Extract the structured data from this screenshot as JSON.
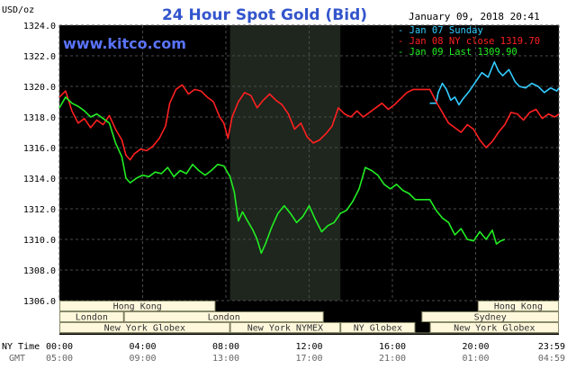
{
  "chart_data": {
    "type": "line",
    "title": "24 Hour Spot Gold (Bid)",
    "watermark": "www.kitco.com",
    "timestamp": "January 09, 2018 20:41",
    "ylabel": "USD/oz",
    "ylim": [
      1306,
      1324
    ],
    "y_ticks": [
      "1324.0",
      "1322.0",
      "1320.0",
      "1318.0",
      "1316.0",
      "1314.0",
      "1312.0",
      "1310.0",
      "1308.0",
      "1306.0"
    ],
    "x_hours": [
      0,
      24
    ],
    "x_ticks": [
      {
        "h": 0,
        "ny": "00:00",
        "gmt": "05:00"
      },
      {
        "h": 4,
        "ny": "04:00",
        "gmt": "09:00"
      },
      {
        "h": 8,
        "ny": "08:00",
        "gmt": "13:00"
      },
      {
        "h": 12,
        "ny": "12:00",
        "gmt": "17:00"
      },
      {
        "h": 16,
        "ny": "16:00",
        "gmt": "21:00"
      },
      {
        "h": 20,
        "ny": "20:00",
        "gmt": "01:00"
      },
      {
        "h": 24,
        "ny": "23:59",
        "gmt": "04:59"
      }
    ],
    "x_axis_labels": {
      "ny": "NY Time",
      "gmt": "GMT"
    },
    "grid": true,
    "background_color": "#000000",
    "grid_color": "#4a4a4a",
    "shaded_region_hours": [
      8.2,
      13.5
    ],
    "series": [
      {
        "name": "Jan 07 Sunday",
        "color": "#33ccff",
        "points": [
          [
            17.8,
            1318.9
          ],
          [
            18.1,
            1318.9
          ],
          [
            18.2,
            1319.6
          ],
          [
            18.4,
            1320.2
          ],
          [
            18.6,
            1319.8
          ],
          [
            18.8,
            1319.1
          ],
          [
            19.0,
            1319.3
          ],
          [
            19.2,
            1318.8
          ],
          [
            19.4,
            1319.2
          ],
          [
            19.7,
            1319.7
          ],
          [
            20.0,
            1320.3
          ],
          [
            20.3,
            1320.9
          ],
          [
            20.6,
            1320.6
          ],
          [
            20.9,
            1321.6
          ],
          [
            21.1,
            1321.0
          ],
          [
            21.3,
            1320.7
          ],
          [
            21.6,
            1321.1
          ],
          [
            21.9,
            1320.3
          ],
          [
            22.1,
            1320.0
          ],
          [
            22.4,
            1319.9
          ],
          [
            22.7,
            1320.2
          ],
          [
            23.0,
            1320.0
          ],
          [
            23.3,
            1319.6
          ],
          [
            23.6,
            1319.9
          ],
          [
            23.9,
            1319.7
          ],
          [
            24.0,
            1319.9
          ]
        ]
      },
      {
        "name": "Jan 08 NY close 1319.70",
        "color": "#ff2020",
        "points": [
          [
            0.0,
            1319.3
          ],
          [
            0.3,
            1319.7
          ],
          [
            0.6,
            1318.4
          ],
          [
            0.9,
            1317.6
          ],
          [
            1.2,
            1317.9
          ],
          [
            1.5,
            1317.3
          ],
          [
            1.8,
            1317.8
          ],
          [
            2.1,
            1317.5
          ],
          [
            2.4,
            1318.1
          ],
          [
            2.7,
            1317.2
          ],
          [
            3.0,
            1316.5
          ],
          [
            3.2,
            1315.5
          ],
          [
            3.4,
            1315.2
          ],
          [
            3.6,
            1315.6
          ],
          [
            3.9,
            1315.9
          ],
          [
            4.2,
            1315.8
          ],
          [
            4.5,
            1316.1
          ],
          [
            4.8,
            1316.6
          ],
          [
            5.1,
            1317.4
          ],
          [
            5.3,
            1318.9
          ],
          [
            5.6,
            1319.8
          ],
          [
            5.9,
            1320.1
          ],
          [
            6.2,
            1319.5
          ],
          [
            6.5,
            1319.8
          ],
          [
            6.8,
            1319.7
          ],
          [
            7.1,
            1319.3
          ],
          [
            7.4,
            1319.0
          ],
          [
            7.7,
            1318.0
          ],
          [
            7.9,
            1317.6
          ],
          [
            8.1,
            1316.6
          ],
          [
            8.3,
            1318.0
          ],
          [
            8.6,
            1319.0
          ],
          [
            8.9,
            1319.6
          ],
          [
            9.2,
            1319.4
          ],
          [
            9.5,
            1318.6
          ],
          [
            9.8,
            1319.1
          ],
          [
            10.1,
            1319.5
          ],
          [
            10.4,
            1319.1
          ],
          [
            10.7,
            1318.8
          ],
          [
            11.0,
            1318.2
          ],
          [
            11.3,
            1317.2
          ],
          [
            11.6,
            1317.6
          ],
          [
            11.9,
            1316.7
          ],
          [
            12.2,
            1316.3
          ],
          [
            12.5,
            1316.5
          ],
          [
            12.8,
            1316.9
          ],
          [
            13.1,
            1317.4
          ],
          [
            13.4,
            1318.6
          ],
          [
            13.7,
            1318.2
          ],
          [
            14.0,
            1318.0
          ],
          [
            14.3,
            1318.4
          ],
          [
            14.6,
            1318.0
          ],
          [
            14.9,
            1318.3
          ],
          [
            15.2,
            1318.6
          ],
          [
            15.5,
            1318.9
          ],
          [
            15.8,
            1318.5
          ],
          [
            16.1,
            1318.8
          ],
          [
            16.4,
            1319.2
          ],
          [
            16.7,
            1319.6
          ],
          [
            17.0,
            1319.8
          ],
          [
            17.4,
            1319.8
          ],
          [
            17.8,
            1319.8
          ],
          [
            18.1,
            1319.0
          ],
          [
            18.4,
            1318.3
          ],
          [
            18.7,
            1317.6
          ],
          [
            19.0,
            1317.3
          ],
          [
            19.3,
            1317.0
          ],
          [
            19.6,
            1317.5
          ],
          [
            19.9,
            1317.2
          ],
          [
            20.2,
            1316.5
          ],
          [
            20.5,
            1316.0
          ],
          [
            20.8,
            1316.4
          ],
          [
            21.1,
            1317.0
          ],
          [
            21.4,
            1317.5
          ],
          [
            21.7,
            1318.3
          ],
          [
            22.0,
            1318.2
          ],
          [
            22.3,
            1317.8
          ],
          [
            22.6,
            1318.3
          ],
          [
            22.9,
            1318.5
          ],
          [
            23.2,
            1317.9
          ],
          [
            23.5,
            1318.2
          ],
          [
            23.8,
            1318.0
          ],
          [
            24.0,
            1318.2
          ]
        ]
      },
      {
        "name": "Jan 09 Last 1309.90",
        "color": "#22ee22",
        "points": [
          [
            0.0,
            1318.6
          ],
          [
            0.3,
            1319.3
          ],
          [
            0.6,
            1318.9
          ],
          [
            0.9,
            1318.7
          ],
          [
            1.2,
            1318.4
          ],
          [
            1.5,
            1318.0
          ],
          [
            1.8,
            1318.2
          ],
          [
            2.1,
            1317.9
          ],
          [
            2.4,
            1317.6
          ],
          [
            2.7,
            1316.3
          ],
          [
            3.0,
            1315.4
          ],
          [
            3.2,
            1314.0
          ],
          [
            3.4,
            1313.7
          ],
          [
            3.7,
            1314.0
          ],
          [
            4.0,
            1314.2
          ],
          [
            4.3,
            1314.1
          ],
          [
            4.6,
            1314.4
          ],
          [
            4.9,
            1314.3
          ],
          [
            5.2,
            1314.7
          ],
          [
            5.5,
            1314.1
          ],
          [
            5.8,
            1314.5
          ],
          [
            6.1,
            1314.3
          ],
          [
            6.4,
            1314.9
          ],
          [
            6.7,
            1314.5
          ],
          [
            7.0,
            1314.2
          ],
          [
            7.3,
            1314.5
          ],
          [
            7.6,
            1314.9
          ],
          [
            7.9,
            1314.8
          ],
          [
            8.2,
            1314.1
          ],
          [
            8.4,
            1313.1
          ],
          [
            8.6,
            1311.2
          ],
          [
            8.8,
            1311.8
          ],
          [
            9.0,
            1311.3
          ],
          [
            9.3,
            1310.6
          ],
          [
            9.5,
            1310.0
          ],
          [
            9.7,
            1309.1
          ],
          [
            9.9,
            1309.7
          ],
          [
            10.2,
            1310.8
          ],
          [
            10.5,
            1311.7
          ],
          [
            10.8,
            1312.2
          ],
          [
            11.1,
            1311.7
          ],
          [
            11.4,
            1311.1
          ],
          [
            11.7,
            1311.5
          ],
          [
            12.0,
            1312.2
          ],
          [
            12.3,
            1311.3
          ],
          [
            12.6,
            1310.5
          ],
          [
            12.9,
            1310.9
          ],
          [
            13.2,
            1311.1
          ],
          [
            13.5,
            1311.7
          ],
          [
            13.8,
            1311.9
          ],
          [
            14.1,
            1312.5
          ],
          [
            14.4,
            1313.3
          ],
          [
            14.7,
            1314.7
          ],
          [
            15.0,
            1314.5
          ],
          [
            15.3,
            1314.2
          ],
          [
            15.6,
            1313.6
          ],
          [
            15.9,
            1313.3
          ],
          [
            16.2,
            1313.6
          ],
          [
            16.5,
            1313.2
          ],
          [
            16.8,
            1313.0
          ],
          [
            17.1,
            1312.6
          ],
          [
            17.8,
            1312.6
          ],
          [
            18.1,
            1311.9
          ],
          [
            18.4,
            1311.4
          ],
          [
            18.7,
            1311.1
          ],
          [
            19.0,
            1310.3
          ],
          [
            19.3,
            1310.7
          ],
          [
            19.6,
            1310.0
          ],
          [
            19.9,
            1309.9
          ],
          [
            20.2,
            1310.5
          ],
          [
            20.5,
            1310.0
          ],
          [
            20.8,
            1310.6
          ],
          [
            21.0,
            1309.7
          ],
          [
            21.2,
            1309.9
          ],
          [
            21.4,
            1310.0
          ]
        ]
      }
    ],
    "sessions": [
      {
        "label": "Hong Kong",
        "row": 0,
        "start": 0.0,
        "end": 7.5
      },
      {
        "label": "Hong Kong",
        "row": 0,
        "start": 20.1,
        "end": 24.0
      },
      {
        "label": "London",
        "row": 1,
        "start": 0.0,
        "end": 3.1
      },
      {
        "label": "London",
        "row": 1,
        "start": 3.1,
        "end": 12.7
      },
      {
        "label": "Sydney",
        "row": 1,
        "start": 17.4,
        "end": 24.0
      },
      {
        "label": "New York Globex",
        "row": 2,
        "start": 0.0,
        "end": 8.2
      },
      {
        "label": "New York NYMEX",
        "row": 2,
        "start": 8.2,
        "end": 13.5
      },
      {
        "label": "NY Globex",
        "row": 2,
        "start": 13.5,
        "end": 17.1
      },
      {
        "label": "New York Globex",
        "row": 2,
        "start": 17.8,
        "end": 24.0
      }
    ]
  }
}
